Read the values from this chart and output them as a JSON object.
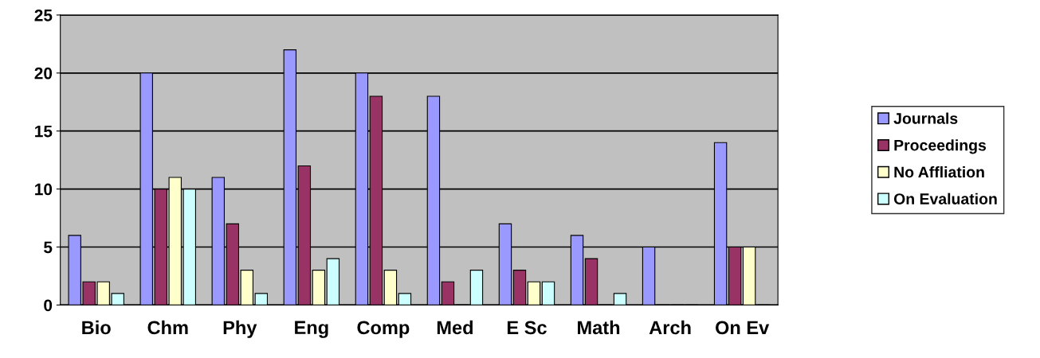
{
  "chart_data": {
    "type": "bar",
    "categories": [
      "Bio",
      "Chm",
      "Phy",
      "Eng",
      "Comp",
      "Med",
      "E Sc",
      "Math",
      "Arch",
      "On Ev"
    ],
    "series": [
      {
        "name": "Journals",
        "color": "#9999ff",
        "values": [
          6,
          20,
          11,
          22,
          20,
          18,
          7,
          6,
          5,
          14
        ]
      },
      {
        "name": "Proceedings",
        "color": "#993366",
        "values": [
          2,
          10,
          7,
          12,
          18,
          2,
          3,
          4,
          0,
          5
        ]
      },
      {
        "name": "No Affliation",
        "color": "#ffffcc",
        "values": [
          2,
          11,
          3,
          3,
          3,
          0,
          2,
          0,
          0,
          5
        ]
      },
      {
        "name": "On Evaluation",
        "color": "#ccffff",
        "values": [
          1,
          10,
          1,
          4,
          1,
          3,
          2,
          1,
          0,
          0
        ]
      }
    ],
    "ylim": [
      0,
      25
    ],
    "yticks": [
      0,
      5,
      10,
      15,
      20,
      25
    ],
    "grid": "y",
    "legend": "right"
  }
}
